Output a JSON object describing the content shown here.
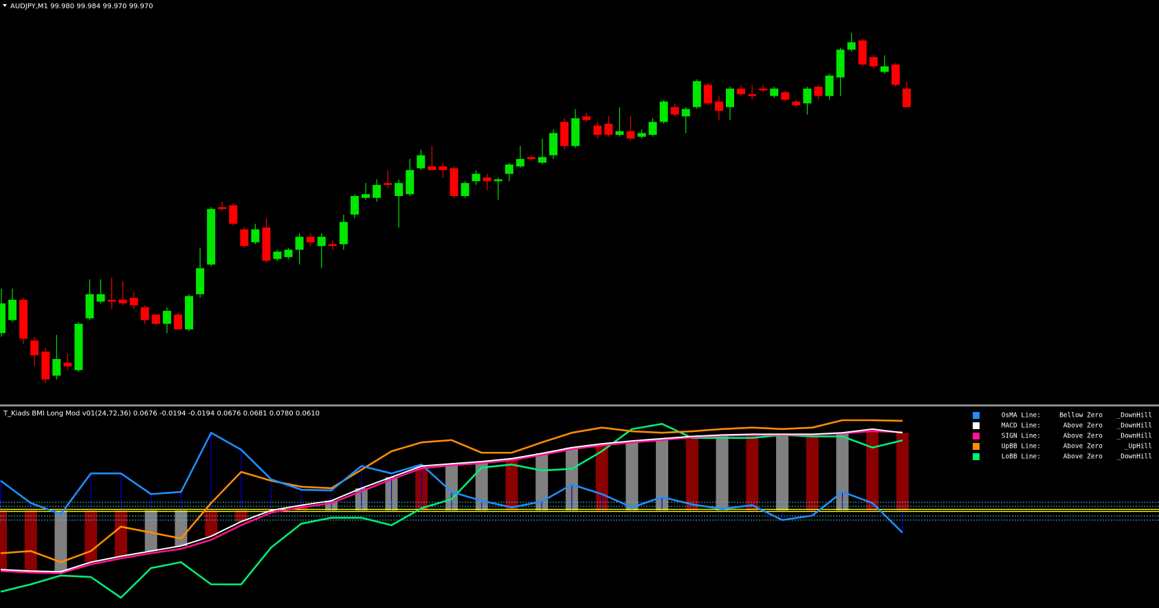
{
  "chart_data": [
    {
      "type": "candlestick",
      "title": "AUDJPY,M1  99.980 99.984 99.970 99.970",
      "up_color": "#00e600",
      "down_color": "#ff0000",
      "candles": [
        [
          99.848,
          99.872,
          99.846,
          99.864
        ],
        [
          99.855,
          99.872,
          99.854,
          99.866
        ],
        [
          99.866,
          99.867,
          99.842,
          99.845
        ],
        [
          99.844,
          99.846,
          99.83,
          99.836
        ],
        [
          99.838,
          99.84,
          99.821,
          99.823
        ],
        [
          99.825,
          99.847,
          99.823,
          99.834
        ],
        [
          99.832,
          99.837,
          99.828,
          99.83
        ],
        [
          99.828,
          99.854,
          99.827,
          99.853
        ],
        [
          99.856,
          99.877,
          99.855,
          99.869
        ],
        [
          99.865,
          99.877,
          99.864,
          99.869
        ],
        [
          99.866,
          99.878,
          99.861,
          99.865
        ],
        [
          99.866,
          99.876,
          99.863,
          99.864
        ],
        [
          99.867,
          99.87,
          99.861,
          99.863
        ],
        [
          99.862,
          99.863,
          99.853,
          99.855
        ],
        [
          99.858,
          99.858,
          99.852,
          99.853
        ],
        [
          99.853,
          99.862,
          99.848,
          99.86
        ],
        [
          99.858,
          99.859,
          99.85,
          99.85
        ],
        [
          99.85,
          99.869,
          99.849,
          99.868
        ],
        [
          99.869,
          99.894,
          99.867,
          99.883
        ],
        [
          99.885,
          99.916,
          99.884,
          99.915
        ],
        [
          99.916,
          99.919,
          99.914,
          99.915
        ],
        [
          99.917,
          99.918,
          99.906,
          99.907
        ],
        [
          99.904,
          99.905,
          99.894,
          99.895
        ],
        [
          99.897,
          99.907,
          99.896,
          99.904
        ],
        [
          99.905,
          99.91,
          99.886,
          99.887
        ],
        [
          99.888,
          99.893,
          99.887,
          99.892
        ],
        [
          99.889,
          99.894,
          99.888,
          99.893
        ],
        [
          99.893,
          99.902,
          99.885,
          99.9
        ],
        [
          99.9,
          99.902,
          99.895,
          99.897
        ],
        [
          99.895,
          99.902,
          99.883,
          99.9
        ],
        [
          99.896,
          99.898,
          99.893,
          99.895
        ],
        [
          99.896,
          99.912,
          99.893,
          99.908
        ],
        [
          99.912,
          99.923,
          99.91,
          99.922
        ],
        [
          99.921,
          99.929,
          99.92,
          99.923
        ],
        [
          99.921,
          99.931,
          99.919,
          99.928
        ],
        [
          99.929,
          99.936,
          99.926,
          99.928
        ],
        [
          99.922,
          99.931,
          99.905,
          99.929
        ],
        [
          99.923,
          99.942,
          99.922,
          99.936
        ],
        [
          99.937,
          99.947,
          99.936,
          99.944
        ],
        [
          99.938,
          99.949,
          99.936,
          99.936
        ],
        [
          99.938,
          99.94,
          99.932,
          99.936
        ],
        [
          99.937,
          99.938,
          99.921,
          99.922
        ],
        [
          99.922,
          99.93,
          99.921,
          99.929
        ],
        [
          99.93,
          99.936,
          99.928,
          99.934
        ],
        [
          99.932,
          99.934,
          99.925,
          99.93
        ],
        [
          99.93,
          99.932,
          99.92,
          99.931
        ],
        [
          99.934,
          99.94,
          99.93,
          99.939
        ],
        [
          99.938,
          99.949,
          99.937,
          99.942
        ],
        [
          99.943,
          99.944,
          99.941,
          99.942
        ],
        [
          99.94,
          99.953,
          99.939,
          99.943
        ],
        [
          99.944,
          99.958,
          99.942,
          99.956
        ],
        [
          99.962,
          99.964,
          99.947,
          99.949
        ],
        [
          99.949,
          99.969,
          99.948,
          99.964
        ],
        [
          99.965,
          99.967,
          99.962,
          99.963
        ],
        [
          99.96,
          99.962,
          99.953,
          99.955
        ],
        [
          99.961,
          99.965,
          99.954,
          99.955
        ],
        [
          99.955,
          99.97,
          99.954,
          99.957
        ],
        [
          99.957,
          99.965,
          99.952,
          99.953
        ],
        [
          99.954,
          99.958,
          99.953,
          99.956
        ],
        [
          99.955,
          99.964,
          99.954,
          99.962
        ],
        [
          99.962,
          99.974,
          99.961,
          99.973
        ],
        [
          99.97,
          99.972,
          99.965,
          99.966
        ],
        [
          99.965,
          99.97,
          99.956,
          99.969
        ],
        [
          99.97,
          99.985,
          99.969,
          99.984
        ],
        [
          99.982,
          99.983,
          99.971,
          99.972
        ],
        [
          99.973,
          99.976,
          99.963,
          99.968
        ],
        [
          99.97,
          99.981,
          99.963,
          99.98
        ],
        [
          99.98,
          99.982,
          99.976,
          99.977
        ],
        [
          99.977,
          99.982,
          99.974,
          99.976
        ],
        [
          99.98,
          99.982,
          99.978,
          99.979
        ],
        [
          99.976,
          99.981,
          99.975,
          99.98
        ],
        [
          99.978,
          99.979,
          99.973,
          99.974
        ],
        [
          99.973,
          99.974,
          99.97,
          99.971
        ],
        [
          99.972,
          99.981,
          99.966,
          99.98
        ],
        [
          99.981,
          99.982,
          99.974,
          99.976
        ],
        [
          99.976,
          99.988,
          99.974,
          99.987
        ],
        [
          99.986,
          100.002,
          99.976,
          100.001
        ],
        [
          100.001,
          100.01,
          100.0,
          100.005
        ],
        [
          100.006,
          100.007,
          99.992,
          99.993
        ],
        [
          99.997,
          99.998,
          99.991,
          99.992
        ],
        [
          99.989,
          99.998,
          99.988,
          99.992
        ],
        [
          99.993,
          99.994,
          99.981,
          99.982
        ],
        [
          99.98,
          99.984,
          99.97,
          99.97
        ]
      ]
    },
    {
      "type": "indicator",
      "title": "T_Kiads BMI Long Mod v01(24,72,36) 0.0676 -0.0194 -0.0194 0.0676 0.0681 0.0780 0.0610",
      "histogram": {
        "values": [
          -0.0515,
          -0.0528,
          -0.0534,
          -0.0451,
          -0.0399,
          -0.0354,
          -0.0309,
          -0.0225,
          -0.0097,
          0,
          0.0045,
          0.0084,
          0.0193,
          0.029,
          0.0386,
          0.0406,
          0.0425,
          0.0451,
          0.0496,
          0.0547,
          0.058,
          0.0605,
          0.0625,
          0.0644,
          0.0657,
          0.0663,
          0.0663,
          0.0663,
          0.0676,
          0.0708,
          0.0676
        ],
        "colors": [
          "#8b0000",
          "#8b0000",
          "#808080",
          "#8b0000",
          "#8b0000",
          "#808080",
          "#808080",
          "#8b0000",
          "#8b0000",
          "#8b0000",
          "#8b0000",
          "#808080",
          "#808080",
          "#808080",
          "#8b0000",
          "#808080",
          "#808080",
          "#8b0000",
          "#808080",
          "#808080",
          "#8b0000",
          "#808080",
          "#808080",
          "#8b0000",
          "#808080",
          "#8b0000",
          "#808080",
          "#8b0000",
          "#808080",
          "#8b0000",
          "#8b0000"
        ]
      },
      "series": [
        {
          "name": "OsMA Line:",
          "color": "#1e90ff",
          "state": "Bellow Zero",
          "state_color": "#ff69b4",
          "trend": "_DownHill",
          "trend_color": "#ff69b4",
          "values": [
            0.0258,
            0.0064,
            -0.0032,
            0.0322,
            0.0322,
            0.0142,
            0.0161,
            0.0676,
            0.0528,
            0.027,
            0.018,
            0.0174,
            0.0386,
            0.0322,
            0.0399,
            0.0161,
            0.0084,
            0.0026,
            0.0077,
            0.0225,
            0.0142,
            0.0026,
            0.0116,
            0.0052,
            0.0013,
            0.0045,
            -0.0084,
            -0.0045,
            0.0161,
            0.0064,
            -0.0194
          ]
        },
        {
          "name": "MACD Line:",
          "color": "#ffffff",
          "state": "Above Zero",
          "state_color": "#00ff7f",
          "trend": "_DownHill",
          "trend_color": "#ff69b4",
          "values": [
            -0.0515,
            -0.0528,
            -0.0534,
            -0.0451,
            -0.0399,
            -0.0354,
            -0.0309,
            -0.0225,
            -0.0097,
            0,
            0.0045,
            0.0084,
            0.0193,
            0.029,
            0.0386,
            0.0406,
            0.0425,
            0.0451,
            0.0496,
            0.0547,
            0.058,
            0.0605,
            0.0625,
            0.0644,
            0.0657,
            0.0663,
            0.0663,
            0.0663,
            0.0676,
            0.0708,
            0.0676
          ]
        },
        {
          "name": "SIGN Line:",
          "color": "#ff1493",
          "state": "Above Zero",
          "state_color": "#00ff7f",
          "trend": "_DownHill",
          "trend_color": "#ff69b4",
          "values": [
            -0.0528,
            -0.0541,
            -0.0547,
            -0.047,
            -0.0418,
            -0.0373,
            -0.0335,
            -0.0257,
            -0.0129,
            -0.0019,
            0.0026,
            0.0064,
            0.0167,
            0.027,
            0.0367,
            0.0393,
            0.0412,
            0.0438,
            0.0483,
            0.0534,
            0.0567,
            0.0592,
            0.0612,
            0.0637,
            0.065,
            0.0657,
            0.0657,
            0.066,
            0.067,
            0.069,
            0.0681
          ]
        },
        {
          "name": "UpBB Line:",
          "color": "#ff8c00",
          "state": "Above Zero",
          "state_color": "#00ff7f",
          "trend": "_UpHill",
          "trend_color": "#00ff7f",
          "values": [
            -0.0373,
            -0.0354,
            -0.0451,
            -0.0354,
            -0.0142,
            -0.0193,
            -0.0245,
            0.0064,
            0.0335,
            0.0258,
            0.0206,
            0.0193,
            0.0354,
            0.0515,
            0.0592,
            0.0612,
            0.0502,
            0.0502,
            0.0592,
            0.0676,
            0.0721,
            0.0689,
            0.0676,
            0.0689,
            0.0708,
            0.0721,
            0.0708,
            0.0721,
            0.0785,
            0.0785,
            0.078
          ]
        },
        {
          "name": "LoBB Line:",
          "color": "#00ee76",
          "state": "Above Zero",
          "state_color": "#00ff7f",
          "trend": "_DownHill",
          "trend_color": "#ff69b4",
          "values": [
            -0.0708,
            -0.0644,
            -0.0567,
            -0.058,
            -0.076,
            -0.0502,
            -0.0451,
            -0.0644,
            -0.0644,
            -0.0322,
            -0.0116,
            -0.0064,
            -0.0064,
            -0.0129,
            0.0019,
            0.0097,
            0.0373,
            0.0399,
            0.0348,
            0.0361,
            0.0515,
            0.0708,
            0.0753,
            0.0631,
            0.0631,
            0.0631,
            0.0657,
            0.0644,
            0.0644,
            0.0547,
            0.061
          ]
        }
      ]
    }
  ]
}
